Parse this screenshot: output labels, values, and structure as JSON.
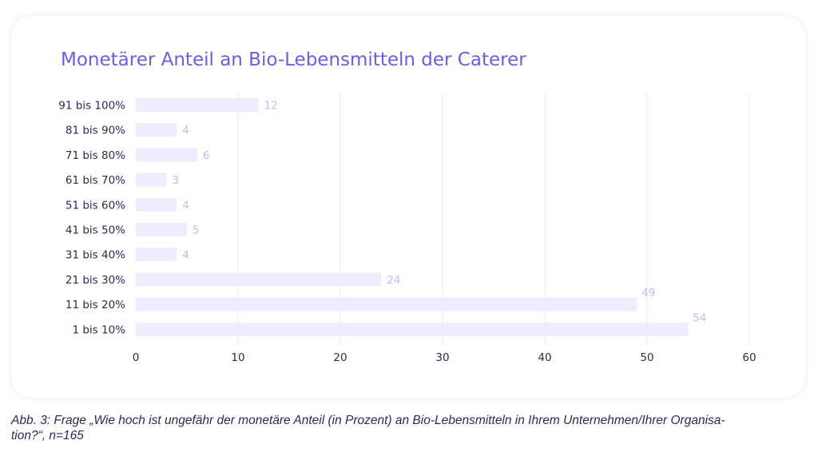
{
  "chart_data": {
    "type": "bar",
    "orientation": "horizontal",
    "title": "Monetärer Anteil an Bio-Lebensmitteln der Caterer",
    "categories": [
      "91 bis 100%",
      "81 bis 90%",
      "71 bis 80%",
      "61 bis 70%",
      "51 bis 60%",
      "41 bis 50%",
      "31 bis 40%",
      "21 bis 30%",
      "11 bis 20%",
      "1 bis 10%"
    ],
    "values": [
      12,
      4,
      6,
      3,
      4,
      5,
      4,
      24,
      49,
      54
    ],
    "xlim": [
      0,
      60
    ],
    "xticks": [
      0,
      10,
      20,
      30,
      40,
      50,
      60
    ],
    "grid": "vertical",
    "colors": {
      "bar": "#efedfd",
      "title": "#6b5cf0",
      "data_label": "#c2bcf2",
      "text": "#2a2a55",
      "grid": "#ebebf2"
    }
  },
  "caption": {
    "lines": [
      "Abb. 3: Frage „Wie hoch ist ungefähr der monetäre Anteil (in Prozent) an Bio-Lebensmitteln in Ihrem Unternehmen/Ihrer Organisa-",
      "tion?“, n=165"
    ]
  }
}
